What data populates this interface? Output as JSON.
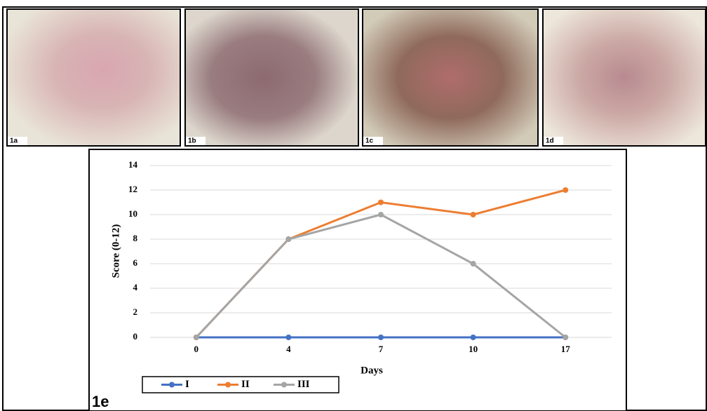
{
  "panels": [
    {
      "label": "1a"
    },
    {
      "label": "1b"
    },
    {
      "label": "1c"
    },
    {
      "label": "1d"
    }
  ],
  "panel_label": "1e",
  "chart_data": {
    "type": "line",
    "x_label": "Days",
    "y_label": "Score (0-12)",
    "categories": [
      "0",
      "4",
      "7",
      "10",
      "17"
    ],
    "series": [
      {
        "name": "I",
        "color": "#4472c4",
        "values": [
          0,
          0,
          0,
          0,
          0
        ]
      },
      {
        "name": "II",
        "color": "#ed7d31",
        "values": [
          0,
          8,
          11,
          10,
          12
        ]
      },
      {
        "name": "III",
        "color": "#a5a5a5",
        "values": [
          0,
          8,
          10,
          6,
          0
        ]
      }
    ],
    "ylim": [
      0,
      14
    ],
    "yticks": [
      0,
      2,
      4,
      6,
      8,
      10,
      12,
      14
    ],
    "grid": true
  }
}
